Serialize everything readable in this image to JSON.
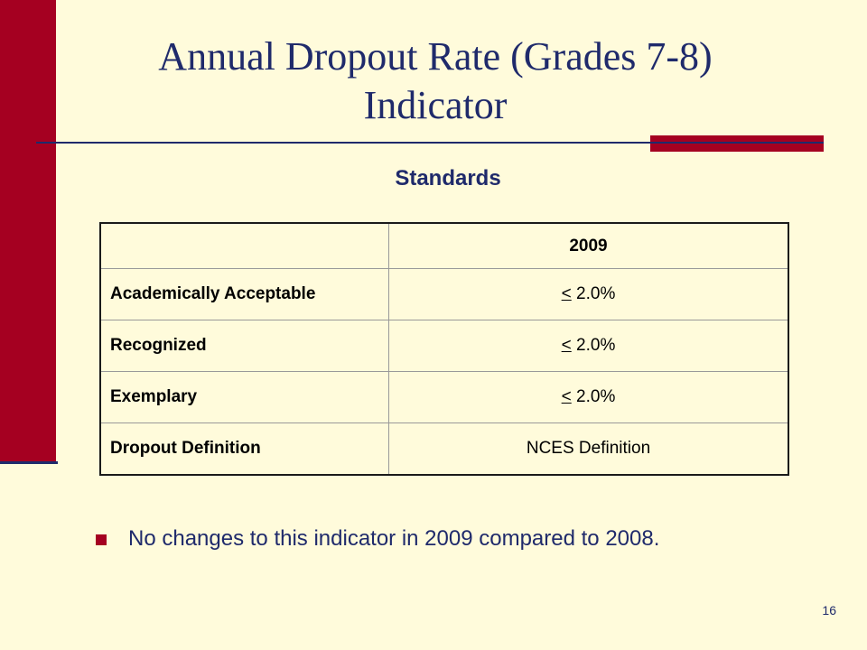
{
  "slide": {
    "title_line1": "Annual Dropout Rate (Grades 7-8)",
    "title_line2": "Indicator",
    "subtitle": "Standards",
    "page_number": "16",
    "colors": {
      "background": "#FFFBDB",
      "accent": "#A50021",
      "text": "#1F2A6B"
    }
  },
  "table": {
    "header": {
      "label": "",
      "value": "2009"
    },
    "rows": [
      {
        "label": "Academically Acceptable",
        "symbol": "<",
        "value": " 2.0%"
      },
      {
        "label": "Recognized",
        "symbol": "<",
        "value": " 2.0%"
      },
      {
        "label": "Exemplary",
        "symbol": "<",
        "value": " 2.0%"
      },
      {
        "label": "Dropout Definition",
        "symbol": "",
        "value": "NCES Definition"
      }
    ]
  },
  "notes": [
    "No changes to this indicator in 2009 compared to 2008."
  ]
}
